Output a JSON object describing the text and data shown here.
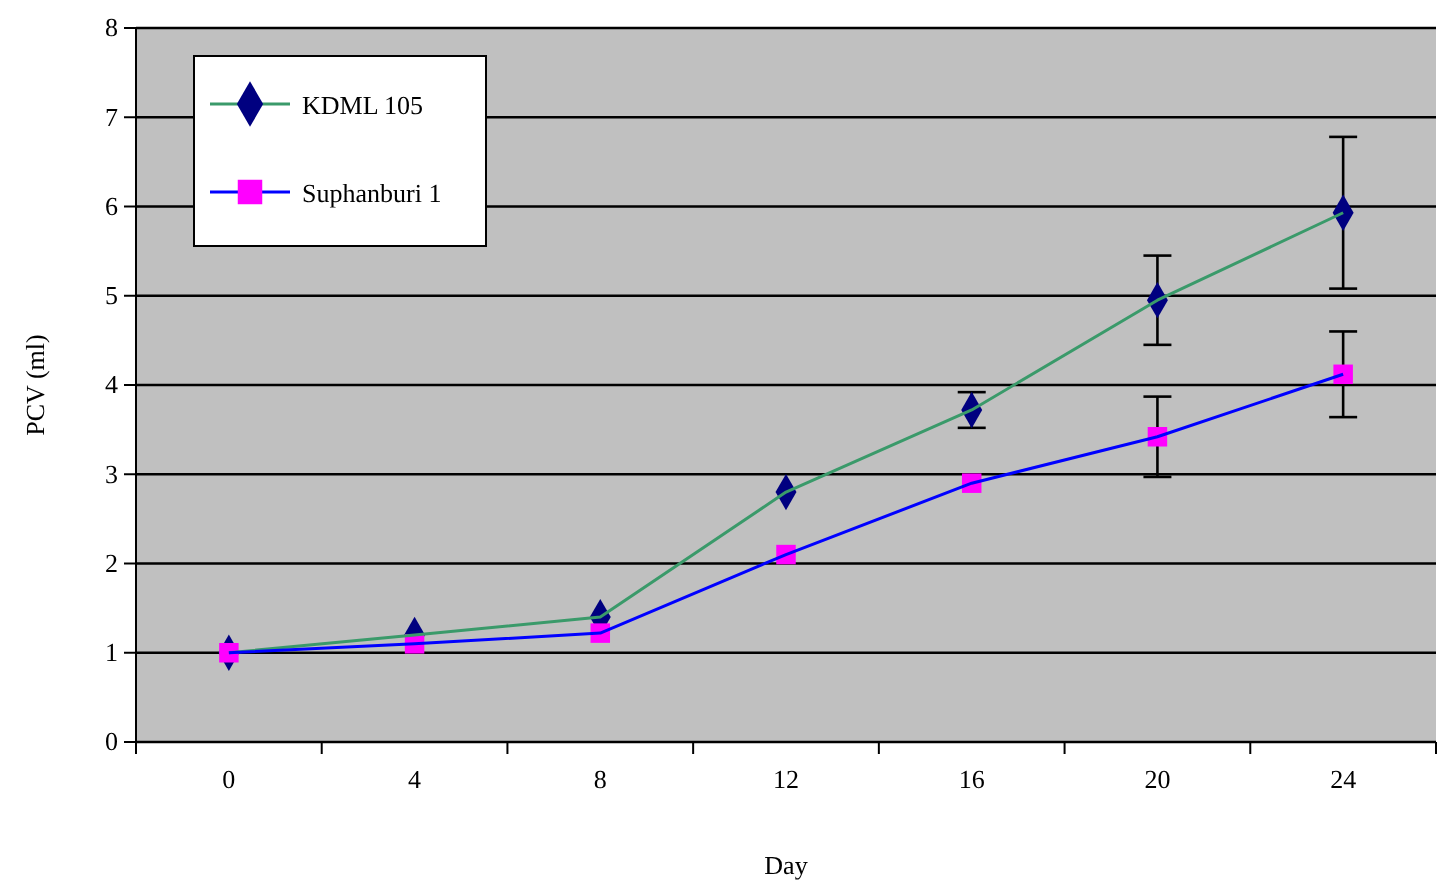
{
  "chart_data": {
    "type": "line",
    "xlabel": "Day",
    "ylabel": "PCV (ml)",
    "categories": [
      "0",
      "4",
      "8",
      "12",
      "16",
      "20",
      "24"
    ],
    "ylim": [
      0,
      8
    ],
    "yticks": [
      0,
      1,
      2,
      3,
      4,
      5,
      6,
      7,
      8
    ],
    "grid": "y",
    "legend": "top left",
    "series": [
      {
        "name": "KDML 105",
        "color": "#3a9a6a",
        "colors": [
          "#000080",
          "#000080",
          "#000080",
          "#000080",
          "#000080",
          "#000080",
          "#000080"
        ],
        "marker": "diamond",
        "values": [
          1.0,
          1.2,
          1.4,
          2.8,
          3.72,
          4.95,
          5.93
        ],
        "errors": [
          null,
          null,
          null,
          null,
          0.2,
          0.5,
          0.85
        ]
      },
      {
        "name": "Suphanburi 1",
        "color": "#0000ff",
        "colors": [
          "#ff00ff",
          "#ff00ff",
          "#ff00ff",
          "#ff00ff",
          "#ff00ff",
          "#ff00ff",
          "#ff00ff"
        ],
        "marker": "square",
        "values": [
          1.0,
          1.1,
          1.22,
          2.1,
          2.9,
          3.42,
          4.12
        ],
        "errors": [
          null,
          null,
          null,
          null,
          null,
          0.45,
          0.48
        ]
      }
    ]
  }
}
